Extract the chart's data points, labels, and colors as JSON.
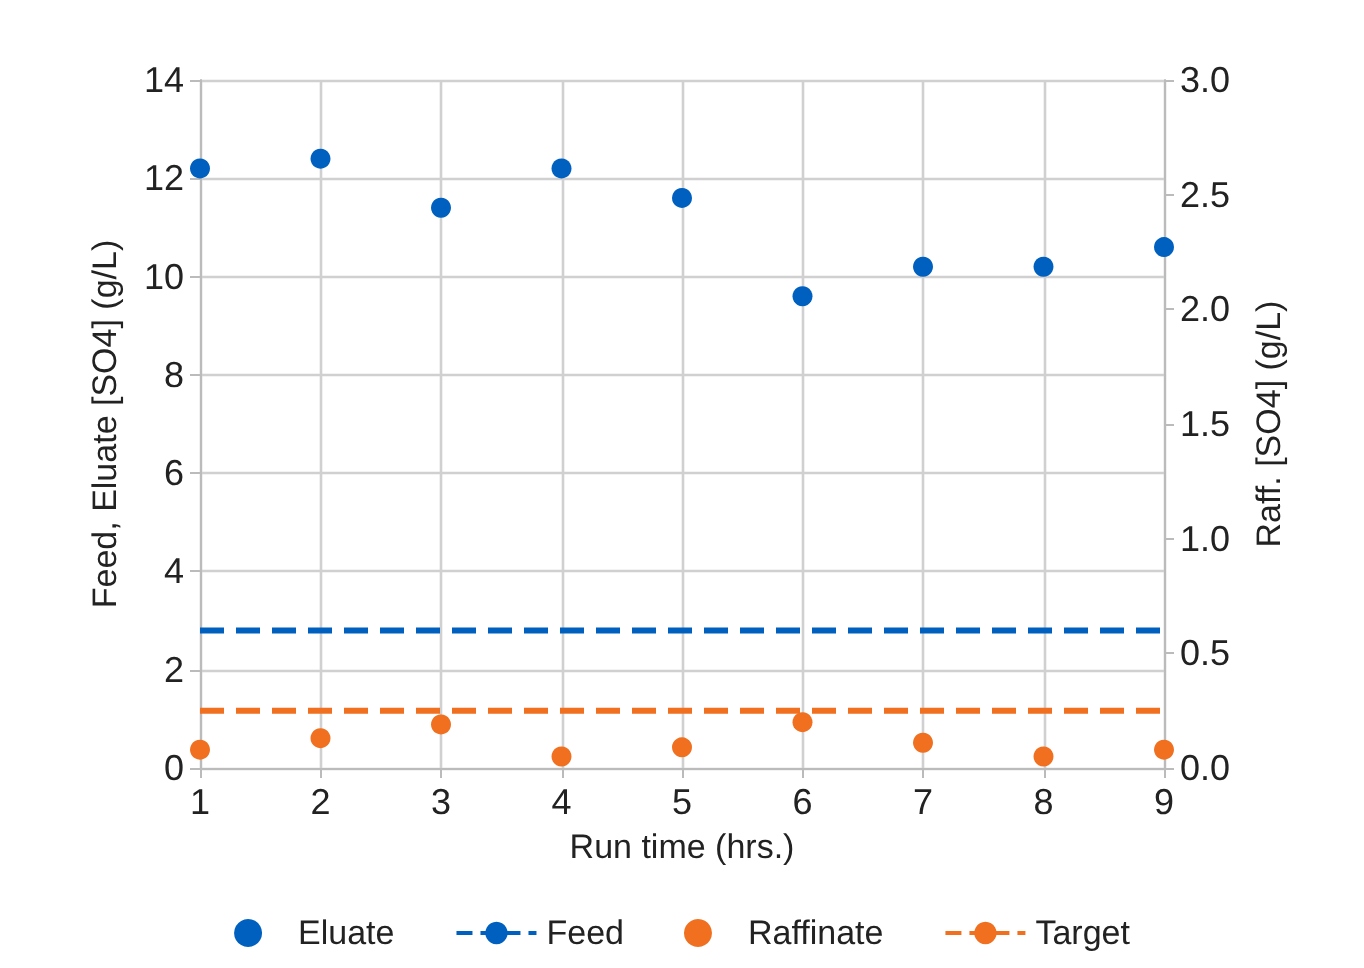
{
  "chart_data": {
    "type": "scatter",
    "xlabel": "Run time (hrs.)",
    "ylabel": "Feed, Eluate [SO4] (g/L)",
    "y2label": "Raff. [SO4] (g/L)",
    "x": [
      1,
      2,
      3,
      4,
      5,
      6,
      7,
      8,
      9
    ],
    "series": [
      {
        "name": "Eluate",
        "color": "#0060c0",
        "marker": "circle",
        "values": [
          12.2,
          12.4,
          11.4,
          12.2,
          11.6,
          9.6,
          10.2,
          10.2,
          10.6
        ]
      },
      {
        "name": "Feed",
        "type": "line",
        "color": "#0060c0",
        "marker": "none",
        "line_style": "dashed",
        "values": [
          2.8,
          2.8,
          2.8,
          2.8,
          2.8,
          2.8,
          2.8,
          2.8,
          2.8
        ]
      },
      {
        "name": "Raffinate",
        "axis": "y2",
        "color": "#f07020",
        "marker": "circle",
        "values": [
          0.08,
          0.13,
          0.19,
          0.05,
          0.09,
          0.2,
          0.11,
          0.05,
          0.08
        ]
      },
      {
        "name": "Target",
        "type": "line",
        "axis": "y2",
        "color": "#f07020",
        "marker": "none",
        "line_style": "dashed",
        "values": [
          0.25,
          0.25,
          0.25,
          0.25,
          0.25,
          0.25,
          0.25,
          0.25,
          0.25
        ]
      }
    ],
    "xlim": [
      1,
      9
    ],
    "xticks": [
      1,
      2,
      3,
      4,
      5,
      6,
      7,
      8,
      9
    ],
    "ylim": [
      0,
      14
    ],
    "yticks": [
      0,
      2,
      4,
      6,
      8,
      10,
      12,
      14
    ],
    "y2lim": [
      0,
      3
    ],
    "y2ticks": [
      {
        "value": 0,
        "label": "0.0"
      },
      {
        "value": 0.5,
        "label": "0.5"
      },
      {
        "value": 1,
        "label": "1.0"
      },
      {
        "value": 1.5,
        "label": "1.5"
      },
      {
        "value": 2,
        "label": "2.0"
      },
      {
        "value": 2.5,
        "label": "2.5"
      },
      {
        "value": 3,
        "label": "3.0"
      }
    ],
    "grid": true,
    "legend": "bottom"
  }
}
